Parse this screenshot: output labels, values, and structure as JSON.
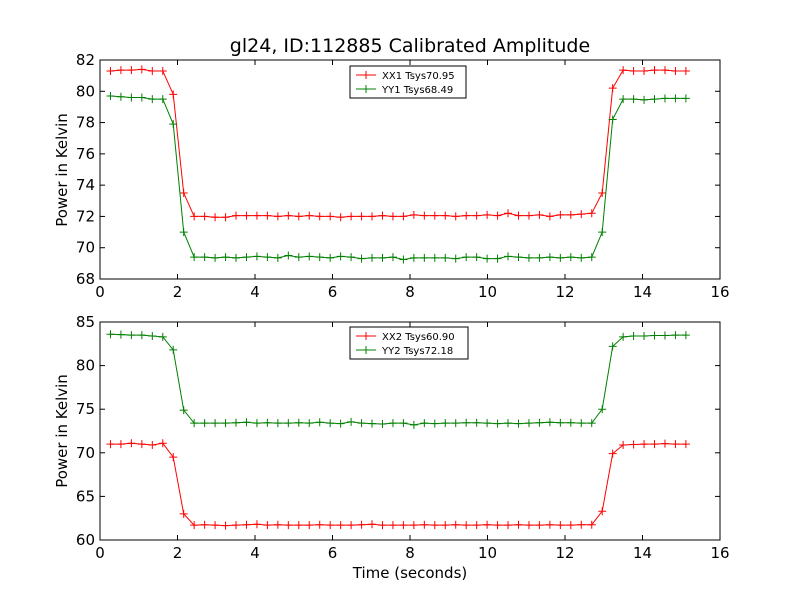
{
  "chart_data": [
    {
      "type": "line",
      "title": "gl24, ID:112885 Calibrated Amplitude",
      "xlabel": "",
      "ylabel": "Power in Kelvin",
      "xlim": [
        0,
        16
      ],
      "ylim": [
        68,
        82
      ],
      "xticks": [
        "0",
        "2",
        "4",
        "6",
        "8",
        "10",
        "12",
        "14",
        "16"
      ],
      "yticks": [
        "68",
        "70",
        "72",
        "74",
        "76",
        "78",
        "80",
        "82"
      ],
      "grid": false,
      "legend_position": "top-center",
      "x": [
        0.27,
        0.54,
        0.81,
        1.08,
        1.35,
        1.62,
        1.89,
        2.16,
        2.43,
        2.7,
        2.97,
        3.24,
        3.51,
        3.78,
        4.05,
        4.32,
        4.59,
        4.86,
        5.13,
        5.4,
        5.67,
        5.94,
        6.21,
        6.48,
        6.75,
        7.02,
        7.29,
        7.56,
        7.83,
        8.1,
        8.37,
        8.64,
        8.91,
        9.18,
        9.45,
        9.72,
        9.99,
        10.26,
        10.53,
        10.8,
        11.07,
        11.34,
        11.61,
        11.88,
        12.15,
        12.42,
        12.69,
        12.96,
        13.23,
        13.5,
        13.77,
        14.04,
        14.31,
        14.58,
        14.85,
        15.12
      ],
      "series": [
        {
          "name": "XX1 Tsys70.95",
          "color": "#ff0000",
          "values": [
            81.3,
            81.35,
            81.35,
            81.4,
            81.3,
            81.3,
            79.8,
            73.5,
            72.0,
            72.0,
            71.95,
            71.95,
            72.05,
            72.05,
            72.05,
            72.05,
            72.0,
            72.05,
            72.0,
            72.05,
            72.0,
            72.0,
            71.95,
            72.0,
            72.0,
            72.0,
            72.05,
            72.0,
            72.0,
            72.1,
            72.05,
            72.05,
            72.05,
            72.0,
            72.05,
            72.05,
            72.1,
            72.05,
            72.2,
            72.05,
            72.05,
            72.1,
            72.0,
            72.1,
            72.1,
            72.15,
            72.2,
            73.5,
            80.2,
            81.35,
            81.3,
            81.3,
            81.35,
            81.35,
            81.3,
            81.3
          ]
        },
        {
          "name": "YY1 Tsys68.49",
          "color": "#008000",
          "values": [
            79.7,
            79.65,
            79.6,
            79.6,
            79.5,
            79.5,
            77.9,
            71.0,
            69.4,
            69.4,
            69.35,
            69.4,
            69.35,
            69.4,
            69.45,
            69.4,
            69.35,
            69.5,
            69.4,
            69.45,
            69.4,
            69.35,
            69.45,
            69.4,
            69.3,
            69.35,
            69.35,
            69.4,
            69.25,
            69.35,
            69.35,
            69.35,
            69.35,
            69.3,
            69.4,
            69.4,
            69.3,
            69.3,
            69.45,
            69.4,
            69.35,
            69.35,
            69.4,
            69.35,
            69.4,
            69.35,
            69.4,
            71.0,
            78.2,
            79.5,
            79.5,
            79.45,
            79.5,
            79.55,
            79.55,
            79.55
          ]
        }
      ]
    },
    {
      "type": "line",
      "title": "",
      "xlabel": "Time (seconds)",
      "ylabel": "Power in Kelvin",
      "xlim": [
        0,
        16
      ],
      "ylim": [
        60,
        85
      ],
      "xticks": [
        "0",
        "2",
        "4",
        "6",
        "8",
        "10",
        "12",
        "14",
        "16"
      ],
      "yticks": [
        "60",
        "65",
        "70",
        "75",
        "80",
        "85"
      ],
      "grid": false,
      "legend_position": "top-center",
      "x": [
        0.27,
        0.54,
        0.81,
        1.08,
        1.35,
        1.62,
        1.89,
        2.16,
        2.43,
        2.7,
        2.97,
        3.24,
        3.51,
        3.78,
        4.05,
        4.32,
        4.59,
        4.86,
        5.13,
        5.4,
        5.67,
        5.94,
        6.21,
        6.48,
        6.75,
        7.02,
        7.29,
        7.56,
        7.83,
        8.1,
        8.37,
        8.64,
        8.91,
        9.18,
        9.45,
        9.72,
        9.99,
        10.26,
        10.53,
        10.8,
        11.07,
        11.34,
        11.61,
        11.88,
        12.15,
        12.42,
        12.69,
        12.96,
        13.23,
        13.5,
        13.77,
        14.04,
        14.31,
        14.58,
        14.85,
        15.12
      ],
      "series": [
        {
          "name": "XX2 Tsys60.90",
          "color": "#ff0000",
          "values": [
            71.0,
            71.0,
            71.1,
            71.0,
            70.9,
            71.1,
            69.5,
            63.0,
            61.7,
            61.75,
            61.7,
            61.65,
            61.7,
            61.75,
            61.8,
            61.7,
            61.75,
            61.7,
            61.7,
            61.7,
            61.75,
            61.7,
            61.7,
            61.7,
            61.75,
            61.8,
            61.7,
            61.7,
            61.7,
            61.7,
            61.75,
            61.7,
            61.7,
            61.75,
            61.7,
            61.7,
            61.75,
            61.7,
            61.7,
            61.75,
            61.7,
            61.7,
            61.75,
            61.7,
            61.7,
            61.75,
            61.75,
            63.3,
            69.9,
            70.9,
            70.95,
            71.0,
            71.0,
            71.05,
            71.0,
            71.0
          ]
        },
        {
          "name": "YY2 Tsys72.18",
          "color": "#008000",
          "values": [
            83.6,
            83.55,
            83.5,
            83.5,
            83.4,
            83.3,
            81.8,
            74.9,
            73.4,
            73.4,
            73.4,
            73.4,
            73.45,
            73.5,
            73.4,
            73.45,
            73.4,
            73.4,
            73.45,
            73.4,
            73.5,
            73.4,
            73.35,
            73.55,
            73.4,
            73.35,
            73.3,
            73.4,
            73.4,
            73.2,
            73.4,
            73.35,
            73.4,
            73.4,
            73.45,
            73.45,
            73.4,
            73.35,
            73.4,
            73.35,
            73.4,
            73.45,
            73.5,
            73.45,
            73.45,
            73.4,
            73.4,
            75.0,
            82.2,
            83.3,
            83.4,
            83.4,
            83.45,
            83.45,
            83.5,
            83.5
          ]
        }
      ]
    }
  ]
}
